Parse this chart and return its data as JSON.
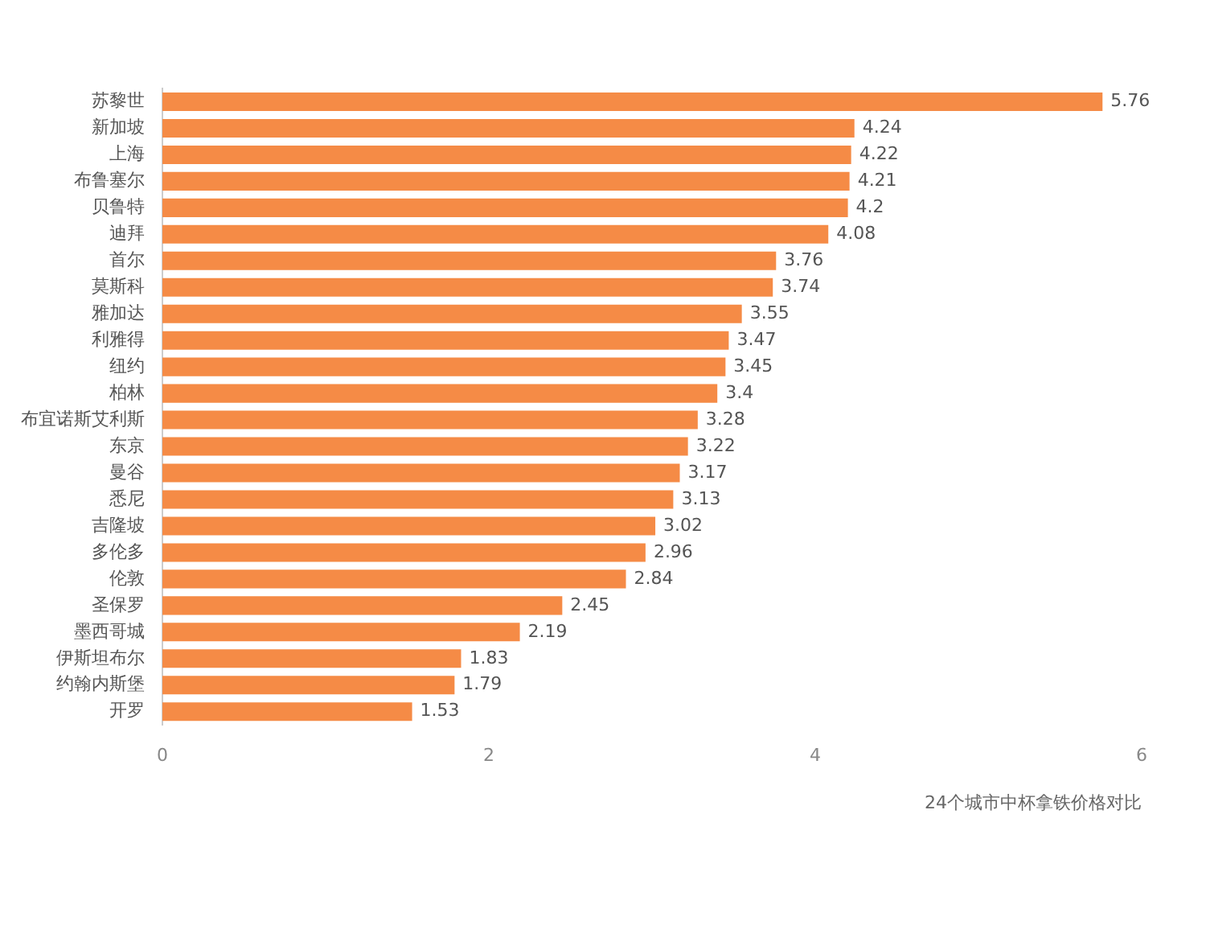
{
  "chart_data": {
    "type": "bar",
    "orientation": "horizontal",
    "xlabel": "24个城市中杯拿铁价格对比",
    "categories": [
      "苏黎世",
      "新加坡",
      "上海",
      "布鲁塞尔",
      "贝鲁特",
      "迪拜",
      "首尔",
      "莫斯科",
      "雅加达",
      "利雅得",
      "纽约",
      "柏林",
      "布宜诺斯艾利斯",
      "东京",
      "曼谷",
      "悉尼",
      "吉隆坡",
      "多伦多",
      "伦敦",
      "圣保罗",
      "墨西哥城",
      "伊斯坦布尔",
      "约翰内斯堡",
      "开罗"
    ],
    "values": [
      5.76,
      4.24,
      4.22,
      4.21,
      4.2,
      4.08,
      3.76,
      3.74,
      3.55,
      3.47,
      3.45,
      3.4,
      3.28,
      3.22,
      3.17,
      3.13,
      3.02,
      2.96,
      2.84,
      2.45,
      2.19,
      1.83,
      1.79,
      1.53
    ],
    "color": "#f58b46",
    "xlim": [
      0,
      6
    ],
    "xticks": [
      0,
      2,
      4,
      6
    ],
    "data_labels": true,
    "grid": false,
    "legend": false
  }
}
